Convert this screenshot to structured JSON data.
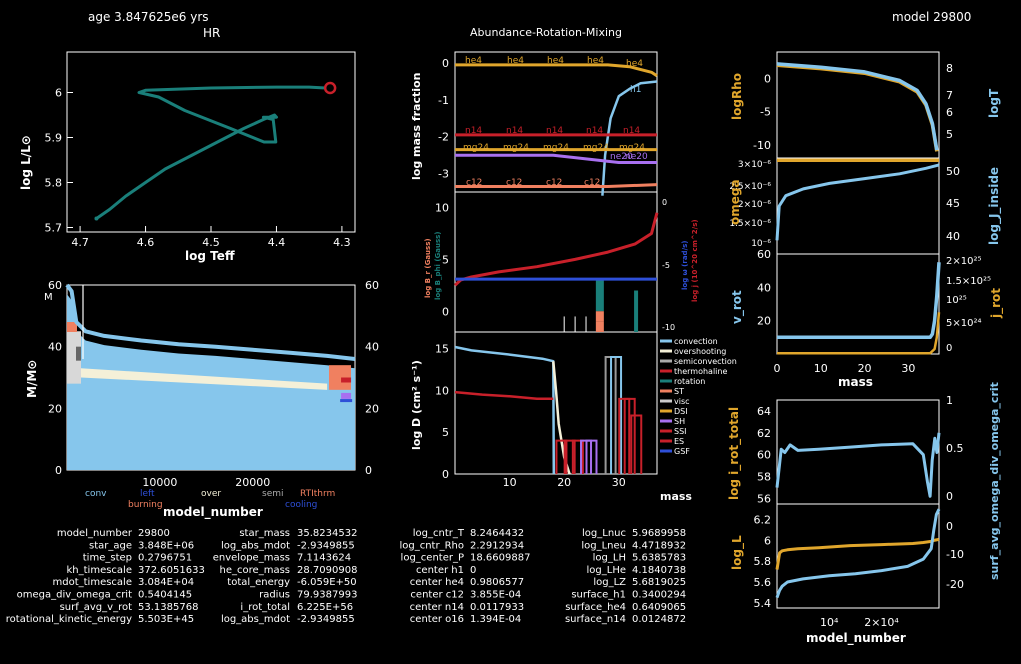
{
  "header": {
    "age_label": "age 3.847625e6 yrs",
    "hr_title": "HR",
    "center_title": "Abundance-Rotation-Mixing",
    "model_label": "model 29800"
  },
  "colors": {
    "background": "#000000",
    "teal": "#1a7f7a",
    "light_blue": "#86c6ec",
    "gold": "#e0a62c",
    "red": "#c8202a",
    "blue": "#2e4fd8",
    "purple": "#a870f0",
    "cream": "#f4f0d8",
    "salmon": "#f08060"
  },
  "chart_data": [
    {
      "id": "hr",
      "type": "line",
      "title": "HR",
      "xlabel": "log Teff",
      "ylabel": "log L/L⊙",
      "xlim": [
        4.72,
        4.28
      ],
      "ylim": [
        5.69,
        6.09
      ],
      "xticks": [
        "4.7",
        "4.6",
        "4.5",
        "4.4",
        "4.3"
      ],
      "xtick_values": [
        4.7,
        4.6,
        4.5,
        4.4,
        4.3
      ],
      "yticks": [
        "5.7",
        "5.8",
        "5.9",
        "6"
      ],
      "ytick_values": [
        5.7,
        5.8,
        5.9,
        6.0
      ],
      "series": [
        {
          "x": [
            4.675,
            4.655,
            4.63,
            4.6,
            4.57,
            4.53,
            4.49,
            4.45,
            4.42,
            4.403,
            4.4,
            4.42,
            4.405,
            4.401,
            4.419,
            4.47,
            4.54,
            4.58,
            4.61,
            4.6,
            4.5,
            4.4,
            4.35,
            4.325
          ],
          "y": [
            5.72,
            5.74,
            5.77,
            5.8,
            5.83,
            5.86,
            5.89,
            5.92,
            5.94,
            5.95,
            5.945,
            5.945,
            5.94,
            5.89,
            5.89,
            5.92,
            5.96,
            5.99,
            6.0,
            6.005,
            6.01,
            6.012,
            6.012,
            6.01
          ]
        }
      ],
      "current_point": {
        "x": 4.318,
        "y": 6.01
      }
    },
    {
      "id": "kippenhahn",
      "type": "area",
      "xlabel": "model_number",
      "ylabel": "M/M⊙",
      "xticks": [
        "10000",
        "20000"
      ],
      "xtick_values": [
        10000,
        20000
      ],
      "xlim": [
        0,
        31000
      ],
      "ylim": [
        0,
        60
      ],
      "yticks": [
        "0",
        "20",
        "40",
        "60"
      ],
      "ytick_values": [
        0,
        20,
        40,
        60
      ],
      "right_yticks": [
        "0",
        "20",
        "40",
        "60"
      ],
      "right_ytick_values": [
        0,
        20,
        40,
        60
      ],
      "star_mass_curve": {
        "x": [
          0,
          500,
          1000,
          2000,
          4000,
          8000,
          12000,
          16000,
          20000,
          24000,
          28000,
          31000
        ],
        "y": [
          60,
          58,
          48,
          45,
          43.5,
          42,
          40.8,
          40,
          39,
          38,
          37,
          36
        ]
      },
      "legend": [
        {
          "label": "conv",
          "color": "#86c6ec"
        },
        {
          "label": "left",
          "color": "#2e4fd8"
        },
        {
          "label": "over",
          "color": "#f4f0d8"
        },
        {
          "label": "semi",
          "color": "#aaaaaa"
        },
        {
          "label": "RTIthrm",
          "color": "#f08060"
        },
        {
          "label": "burning",
          "color": "#f08060"
        },
        {
          "label": "cooling",
          "color": "#2e4fd8"
        }
      ]
    },
    {
      "id": "abundance",
      "type": "line",
      "ylabel": "log mass fraction",
      "ylim": [
        -3.5,
        0.3
      ],
      "yticks": [
        "0",
        "-1",
        "-2",
        "-3"
      ],
      "ytick_values": [
        0,
        -1,
        -2,
        -3
      ],
      "xlim": [
        0,
        37
      ],
      "series": [
        {
          "name": "he4",
          "color": "#e0a62c",
          "x": [
            0,
            28,
            32,
            36,
            37
          ],
          "y": [
            -0.05,
            -0.05,
            -0.1,
            -0.25,
            -0.35
          ]
        },
        {
          "name": "h1",
          "color": "#86c6ec",
          "x": [
            27,
            27.5,
            28.5,
            30,
            32,
            34,
            37
          ],
          "y": [
            -3.6,
            -2.5,
            -1.5,
            -0.9,
            -0.7,
            -0.55,
            -0.5
          ]
        },
        {
          "name": "n14",
          "color": "#c8202a",
          "x": [
            0,
            37
          ],
          "y": [
            -1.95,
            -1.95
          ]
        },
        {
          "name": "mg24",
          "color": "#e0a62c",
          "x": [
            0,
            37
          ],
          "y": [
            -2.35,
            -2.35
          ]
        },
        {
          "name": "ne20",
          "color": "#a870f0",
          "x": [
            0,
            18,
            30,
            37
          ],
          "y": [
            -2.5,
            -2.5,
            -2.7,
            -2.7
          ]
        },
        {
          "name": "c12",
          "color": "#f08060",
          "x": [
            0,
            28,
            37
          ],
          "y": [
            -3.35,
            -3.35,
            -3.3
          ]
        }
      ],
      "labels": [
        "he4",
        "he4",
        "he4",
        "he4",
        "he4",
        "h1",
        "n14",
        "n14",
        "n14",
        "n14",
        "n14",
        "mg24",
        "mg24",
        "mg24",
        "mg24",
        "mg24",
        "ne20",
        "ne20",
        "c12",
        "c12",
        "c12",
        "c12"
      ]
    },
    {
      "id": "rotation",
      "type": "line",
      "left_ylabel_a": "log B_r (Gauss)",
      "left_ylabel_b": "log B_phi (Gauss)",
      "right_ylabel_a": "log ω (rad/s)",
      "right_ylabel_b": "log j (10^20 cm^2/s)",
      "ylim": [
        -2,
        11.5
      ],
      "yticks": [
        "10",
        "5",
        "0"
      ],
      "ytick_values": [
        10,
        5,
        0
      ],
      "right_yticks": [
        "0",
        "-5",
        "-10"
      ],
      "xlim": [
        0,
        37
      ],
      "series": [
        {
          "name": "j",
          "color": "#c8202a",
          "x": [
            0,
            1,
            3,
            8,
            15,
            22,
            28,
            33,
            36,
            37
          ],
          "y": [
            2.5,
            3.0,
            3.3,
            3.8,
            4.3,
            5.0,
            5.7,
            6.5,
            7.5,
            9.5
          ]
        },
        {
          "name": "omega",
          "color": "#2e4fd8",
          "x": [
            0,
            37
          ],
          "y": [
            3.1,
            3.1
          ]
        }
      ]
    },
    {
      "id": "mixing",
      "type": "line",
      "ylabel": "log D (cm² s⁻¹)",
      "xlabel": "mass",
      "xlim": [
        0,
        37
      ],
      "ylim": [
        0,
        17
      ],
      "xticks": [
        "10",
        "20",
        "30"
      ],
      "xtick_values": [
        10,
        20,
        30
      ],
      "yticks": [
        "0",
        "5",
        "10",
        "15"
      ],
      "ytick_values": [
        0,
        5,
        10,
        15
      ],
      "series": [
        {
          "name": "convection",
          "color": "#86c6ec",
          "x": [
            0,
            3,
            10,
            16,
            18,
            18.1
          ],
          "y": [
            15.2,
            14.8,
            14.3,
            13.8,
            13.5,
            0
          ]
        },
        {
          "name": "overshooting",
          "color": "#f4f0d8",
          "x": [
            18,
            18.5,
            19,
            20,
            21
          ],
          "y": [
            13.5,
            10,
            6,
            2,
            0
          ]
        },
        {
          "name": "rotation",
          "color": "#c8202a",
          "x": [
            0,
            5,
            10,
            15,
            18
          ],
          "y": [
            9.8,
            9.5,
            9.3,
            9.0,
            9.0
          ]
        }
      ],
      "legend": [
        {
          "label": "convection",
          "color": "#86c6ec"
        },
        {
          "label": "overshooting",
          "color": "#f4f0d8"
        },
        {
          "label": "semiconvection",
          "color": "#aaaaaa"
        },
        {
          "label": "thermohaline",
          "color": "#c8202a"
        },
        {
          "label": "rotation",
          "color": "#1a7f7a"
        },
        {
          "label": "ST",
          "color": "#f08060"
        },
        {
          "label": "visc",
          "color": "#cccccc"
        },
        {
          "label": "DSI",
          "color": "#e0a62c"
        },
        {
          "label": "SH",
          "color": "#a870f0"
        },
        {
          "label": "SSI",
          "color": "#c8202a"
        },
        {
          "label": "ES",
          "color": "#c8202a"
        },
        {
          "label": "GSF",
          "color": "#2e4fd8"
        }
      ]
    },
    {
      "id": "logrho_logt",
      "type": "line",
      "left_ylabel": "logRho",
      "right_ylabel": "logT",
      "xlim": [
        0,
        37
      ],
      "ylim": [
        -12,
        4
      ],
      "yticks": [
        "0",
        "-5",
        "-10"
      ],
      "ytick_values": [
        0,
        -5,
        -10
      ],
      "right_yticks": [
        "8",
        "7",
        "6",
        "5"
      ],
      "series": [
        {
          "name": "logRho",
          "color": "#e0a62c",
          "x": [
            0,
            10,
            20,
            28,
            32,
            34,
            35.5,
            36.5
          ],
          "y": [
            2.0,
            1.5,
            0.8,
            -0.5,
            -2,
            -4,
            -7,
            -11
          ]
        },
        {
          "name": "logT",
          "color": "#86c6ec",
          "x": [
            0,
            10,
            20,
            28,
            32,
            34,
            35.5,
            36.5
          ],
          "y": [
            2.2,
            1.7,
            1.0,
            -0.3,
            -1.8,
            -3.8,
            -6.8,
            -10.8
          ]
        }
      ]
    },
    {
      "id": "omega_j",
      "type": "line",
      "left_ylabel": "omega",
      "right_ylabel": "log_J_inside",
      "left_yticks": [
        "3×10⁻⁶",
        "2.5×10⁻⁶",
        "2×10⁻⁶",
        "1.5×10⁻⁶",
        "10⁻⁶"
      ],
      "right_yticks": [
        "50",
        "45",
        "40"
      ],
      "series": [
        {
          "name": "omega",
          "color": "#e0a62c",
          "x": [
            0,
            37
          ],
          "y": [
            3.05,
            3.05
          ]
        },
        {
          "name": "log_J_inside",
          "color": "#86c6ec",
          "x": [
            0,
            0.5,
            2,
            6,
            12,
            20,
            28,
            34,
            37
          ],
          "y": [
            40,
            45,
            46.5,
            47.5,
            48.3,
            49,
            49.7,
            50.5,
            51
          ]
        }
      ]
    },
    {
      "id": "vrot_jrot",
      "type": "line",
      "xlabel": "mass",
      "left_ylabel": "v_rot",
      "right_ylabel": "j_rot",
      "xlim": [
        0,
        37
      ],
      "xticks": [
        "0",
        "10",
        "20",
        "30"
      ],
      "xtick_values": [
        0,
        10,
        20,
        30
      ],
      "ylim": [
        0,
        60
      ],
      "yticks": [
        "60",
        "40",
        "20"
      ],
      "ytick_values": [
        60,
        40,
        20
      ],
      "right_yticks": [
        "2×10²⁵",
        "1.5×10²⁵",
        "10²⁵",
        "5×10²⁴",
        "0"
      ],
      "series": [
        {
          "name": "v_rot",
          "color": "#86c6ec",
          "x": [
            0,
            35,
            35.5,
            36,
            36.5,
            37
          ],
          "y": [
            10,
            10,
            12,
            20,
            35,
            55
          ]
        },
        {
          "name": "j_rot",
          "color": "#e0a62c",
          "x": [
            0,
            35,
            36,
            36.5,
            37
          ],
          "y": [
            0.5,
            0.5,
            3,
            10,
            25
          ]
        }
      ]
    },
    {
      "id": "irot_omega",
      "type": "line",
      "left_ylabel": "log i_rot_total",
      "right_ylabel": "surf_avg_omega_div_omega_crit",
      "xlim": [
        0,
        31000
      ],
      "ylim": [
        55.5,
        65
      ],
      "yticks": [
        "64",
        "62",
        "60",
        "58",
        "56"
      ],
      "ytick_values": [
        64,
        62,
        60,
        58,
        56
      ],
      "right_yticks": [
        "1",
        "0.5",
        "0"
      ],
      "series": [
        {
          "name": "surf_avg_omega_div_omega_crit",
          "color": "#86c6ec",
          "x": [
            0,
            800,
            1500,
            2500,
            4000,
            8000,
            14000,
            20000,
            26000,
            28000,
            28800,
            29300,
            29700,
            30200,
            30600,
            31000
          ],
          "y": [
            57,
            60.5,
            60.2,
            60.9,
            60.4,
            60.5,
            60.7,
            60.9,
            61.0,
            60.0,
            57.5,
            56.2,
            59.5,
            61.5,
            60.2,
            62
          ]
        }
      ]
    },
    {
      "id": "logl",
      "type": "line",
      "xlabel": "model_number",
      "left_ylabel": "log_L",
      "right_ylabel": "log_abs_mdot",
      "xlim": [
        0,
        31000
      ],
      "ylim": [
        5.35,
        6.35
      ],
      "yticks": [
        "6.2",
        "6",
        "5.8",
        "5.6",
        "5.4"
      ],
      "ytick_values": [
        6.2,
        6.0,
        5.8,
        5.6,
        5.4
      ],
      "right_yticks": [
        "0",
        "-10",
        "-20"
      ],
      "xticks": [
        "10⁴",
        "2×10⁴"
      ],
      "xtick_values": [
        10000,
        20000
      ],
      "series": [
        {
          "name": "log_L",
          "color": "#e0a62c",
          "x": [
            0,
            500,
            1000,
            2000,
            4000,
            8000,
            14000,
            20000,
            26000,
            28000,
            29500,
            30000,
            31000
          ],
          "y": [
            5.72,
            5.88,
            5.9,
            5.91,
            5.92,
            5.93,
            5.95,
            5.96,
            5.97,
            5.98,
            5.99,
            6.0,
            6.01
          ]
        },
        {
          "name": "log_abs_mdot",
          "color": "#86c6ec",
          "x": [
            0,
            500,
            1000,
            2000,
            5000,
            10000,
            15000,
            20000,
            25000,
            28000,
            29500,
            30000,
            30500,
            31000
          ],
          "y": [
            5.45,
            5.52,
            5.56,
            5.6,
            5.63,
            5.66,
            5.68,
            5.71,
            5.75,
            5.82,
            5.92,
            6.1,
            6.25,
            6.3
          ]
        }
      ]
    }
  ],
  "kipp_axis": {
    "ylabel_top": "M"
  },
  "mixing_footer": {
    "xlabel": "mass"
  },
  "info_table": {
    "columns": [
      [
        {
          "k": "model_number",
          "v": "29800"
        },
        {
          "k": "star_age",
          "v": "3.848E+06"
        },
        {
          "k": "time_step",
          "v": "0.2796751"
        },
        {
          "k": "kh_timescale",
          "v": "372.6051633"
        },
        {
          "k": "mdot_timescale",
          "v": "3.084E+04"
        },
        {
          "k": "omega_div_omega_crit",
          "v": "0.5404145"
        },
        {
          "k": "surf_avg_v_rot",
          "v": "53.1385768"
        },
        {
          "k": "rotational_kinetic_energy",
          "v": "5.503E+45"
        }
      ],
      [
        {
          "k": "star_mass",
          "v": "35.8234532"
        },
        {
          "k": "log_abs_mdot",
          "v": "-2.9349855"
        },
        {
          "k": "envelope_mass",
          "v": "7.1143624"
        },
        {
          "k": "he_core_mass",
          "v": "28.7090908"
        },
        {
          "k": "total_energy",
          "v": "-6.059E+50"
        },
        {
          "k": "radius",
          "v": "79.9387993"
        },
        {
          "k": "i_rot_total",
          "v": "6.225E+56"
        },
        {
          "k": "log_abs_mdot",
          "v": "-2.9349855"
        }
      ],
      [
        {
          "k": "log_cntr_T",
          "v": "8.2464432"
        },
        {
          "k": "log_cntr_Rho",
          "v": "2.2912934"
        },
        {
          "k": "log_center_P",
          "v": "18.6609887"
        },
        {
          "k": "center h1",
          "v": "0"
        },
        {
          "k": "center he4",
          "v": "0.9806577"
        },
        {
          "k": "center c12",
          "v": "3.855E-04"
        },
        {
          "k": "center n14",
          "v": "0.0117933"
        },
        {
          "k": "center o16",
          "v": "1.394E-04"
        }
      ],
      [
        {
          "k": "log_Lnuc",
          "v": "5.9689958"
        },
        {
          "k": "log_Lneu",
          "v": "4.4718932"
        },
        {
          "k": "log_LH",
          "v": "5.6385783"
        },
        {
          "k": "log_LHe",
          "v": "4.1840738"
        },
        {
          "k": "log_LZ",
          "v": "5.6819025"
        },
        {
          "k": "surface_h1",
          "v": "0.3400294"
        },
        {
          "k": "surface_he4",
          "v": "0.6409065"
        },
        {
          "k": "surface_n14",
          "v": "0.0124872"
        }
      ]
    ]
  }
}
